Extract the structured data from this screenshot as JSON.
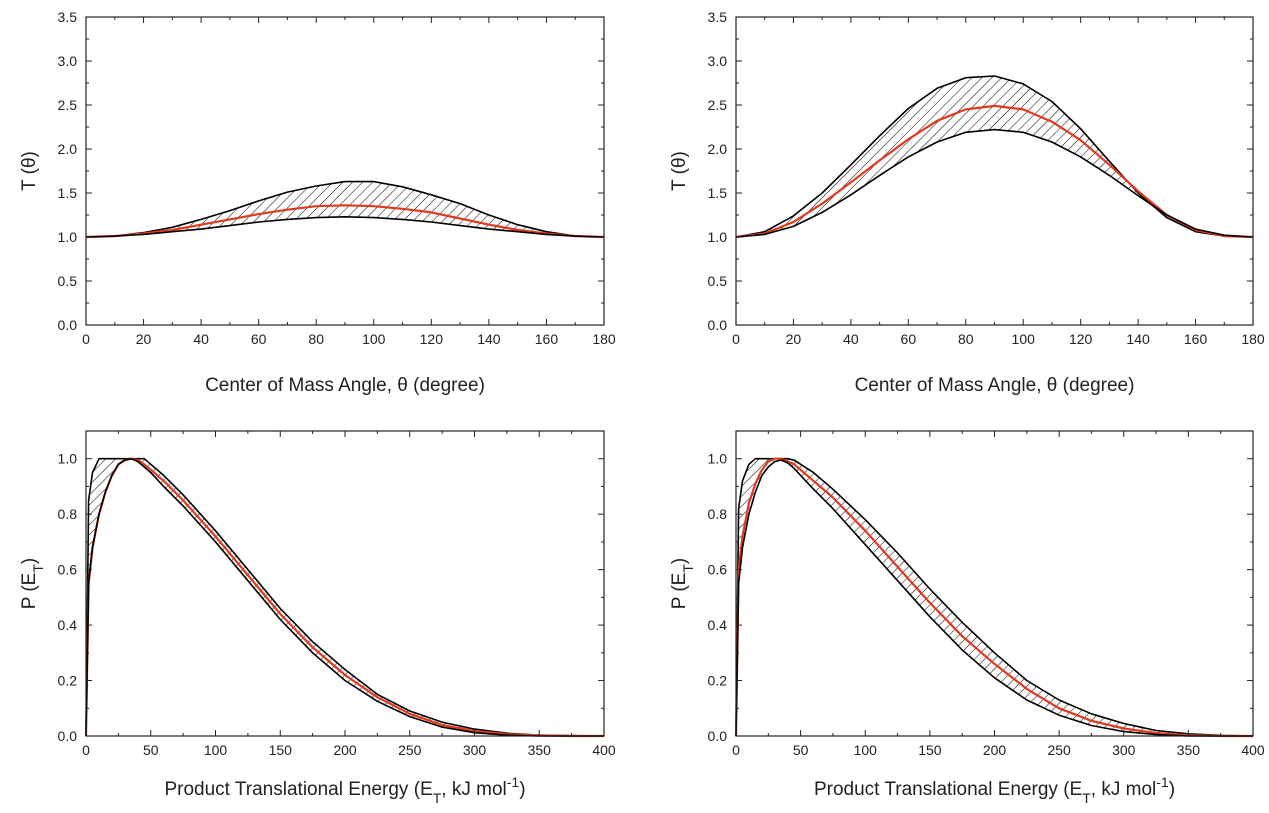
{
  "chart_data": [
    {
      "type": "area",
      "panel": "top-left",
      "xlabel": "Center of Mass Angle, θ (degree)",
      "ylabel": "T (θ)",
      "xlim": [
        0,
        180
      ],
      "ylim": [
        0,
        3.5
      ],
      "xticks": [
        "0",
        "20",
        "40",
        "60",
        "80",
        "100",
        "120",
        "140",
        "160",
        "180"
      ],
      "yticks": [
        "0.0",
        "0.5",
        "1.0",
        "1.5",
        "2.0",
        "2.5",
        "3.0",
        "3.5"
      ],
      "x": [
        0,
        10,
        20,
        30,
        40,
        50,
        60,
        70,
        80,
        90,
        100,
        110,
        120,
        130,
        140,
        150,
        160,
        170,
        180
      ],
      "series": [
        {
          "role": "upper_bound",
          "color": "#000000",
          "values": [
            1.0,
            1.01,
            1.05,
            1.11,
            1.2,
            1.3,
            1.41,
            1.51,
            1.58,
            1.63,
            1.63,
            1.57,
            1.48,
            1.38,
            1.25,
            1.14,
            1.06,
            1.01,
            1.0
          ]
        },
        {
          "role": "best_fit",
          "color": "#e03a1e",
          "values": [
            1.0,
            1.01,
            1.04,
            1.08,
            1.14,
            1.2,
            1.26,
            1.31,
            1.35,
            1.36,
            1.35,
            1.32,
            1.28,
            1.21,
            1.14,
            1.08,
            1.04,
            1.01,
            1.0
          ]
        },
        {
          "role": "lower_bound",
          "color": "#000000",
          "values": [
            1.0,
            1.01,
            1.03,
            1.06,
            1.09,
            1.13,
            1.17,
            1.2,
            1.22,
            1.23,
            1.22,
            1.2,
            1.17,
            1.13,
            1.09,
            1.06,
            1.03,
            1.01,
            1.0
          ]
        }
      ],
      "grid": false
    },
    {
      "type": "area",
      "panel": "top-right",
      "xlabel": "Center of Mass Angle, θ (degree)",
      "ylabel": "T (θ)",
      "xlim": [
        0,
        180
      ],
      "ylim": [
        0,
        3.5
      ],
      "xticks": [
        "0",
        "20",
        "40",
        "60",
        "80",
        "100",
        "120",
        "140",
        "160",
        "180"
      ],
      "yticks": [
        "0.0",
        "0.5",
        "1.0",
        "1.5",
        "2.0",
        "2.5",
        "3.0",
        "3.5"
      ],
      "x": [
        0,
        10,
        20,
        30,
        40,
        50,
        60,
        70,
        80,
        90,
        100,
        110,
        120,
        130,
        140,
        150,
        160,
        170,
        180
      ],
      "series": [
        {
          "role": "upper_bound",
          "color": "#000000",
          "values": [
            1.0,
            1.06,
            1.24,
            1.5,
            1.82,
            2.15,
            2.46,
            2.69,
            2.81,
            2.83,
            2.74,
            2.54,
            2.23,
            1.86,
            1.5,
            1.22,
            1.06,
            1.01,
            1.0
          ]
        },
        {
          "role": "best_fit",
          "color": "#e03a1e",
          "values": [
            1.0,
            1.04,
            1.17,
            1.38,
            1.62,
            1.87,
            2.11,
            2.32,
            2.45,
            2.49,
            2.45,
            2.31,
            2.1,
            1.82,
            1.52,
            1.25,
            1.08,
            1.01,
            1.0
          ]
        },
        {
          "role": "lower_bound",
          "color": "#000000",
          "values": [
            1.0,
            1.03,
            1.12,
            1.28,
            1.48,
            1.7,
            1.91,
            2.08,
            2.19,
            2.22,
            2.19,
            2.08,
            1.91,
            1.7,
            1.47,
            1.25,
            1.09,
            1.02,
            1.0
          ]
        }
      ],
      "grid": false
    },
    {
      "type": "area",
      "panel": "bottom-left",
      "xlabel": "Product Translational Energy (E",
      "xlabel_sub": "T",
      "xlabel_tail": ", kJ mol",
      "xlabel_sup": "-1",
      "xlabel_close": ")",
      "ylabel": "P (E",
      "ylabel_sub": "T",
      "ylabel_close": ")",
      "xlim": [
        0,
        400
      ],
      "ylim": [
        0,
        1.1
      ],
      "xticks": [
        "0",
        "50",
        "100",
        "150",
        "200",
        "250",
        "300",
        "350",
        "400"
      ],
      "yticks": [
        "0.0",
        "0.2",
        "0.4",
        "0.6",
        "0.8",
        "1.0"
      ],
      "x": [
        0,
        2,
        5,
        10,
        15,
        20,
        25,
        30,
        35,
        40,
        45,
        50,
        60,
        75,
        100,
        125,
        150,
        175,
        200,
        225,
        250,
        275,
        300,
        325,
        350,
        375,
        400
      ],
      "series": [
        {
          "role": "upper_bound",
          "color": "#000000",
          "values": [
            0,
            0.85,
            0.95,
            1.0,
            1.0,
            1.0,
            1.0,
            1.0,
            1.0,
            1.0,
            1.0,
            0.98,
            0.94,
            0.87,
            0.74,
            0.6,
            0.46,
            0.34,
            0.24,
            0.15,
            0.09,
            0.05,
            0.025,
            0.01,
            0.003,
            0.001,
            0
          ]
        },
        {
          "role": "best_fit",
          "color": "#e03a1e",
          "values": [
            0,
            0.55,
            0.68,
            0.8,
            0.88,
            0.94,
            0.98,
            0.995,
            1.0,
            0.995,
            0.98,
            0.96,
            0.92,
            0.85,
            0.72,
            0.58,
            0.44,
            0.32,
            0.22,
            0.14,
            0.08,
            0.04,
            0.018,
            0.007,
            0.002,
            0.0,
            0
          ]
        },
        {
          "role": "lower_bound",
          "color": "#000000",
          "values": [
            0,
            0.55,
            0.68,
            0.8,
            0.88,
            0.94,
            0.98,
            0.995,
            1.0,
            0.99,
            0.97,
            0.95,
            0.9,
            0.83,
            0.7,
            0.56,
            0.42,
            0.3,
            0.2,
            0.125,
            0.07,
            0.032,
            0.012,
            0.003,
            0.0,
            0.0,
            0
          ]
        }
      ],
      "grid": false
    },
    {
      "type": "area",
      "panel": "bottom-right",
      "xlabel": "Product Translational Energy (E",
      "xlabel_sub": "T",
      "xlabel_tail": ", kJ mol",
      "xlabel_sup": "-1",
      "xlabel_close": ")",
      "ylabel": "P (E",
      "ylabel_sub": "T",
      "ylabel_close": ")",
      "xlim": [
        0,
        400
      ],
      "ylim": [
        0,
        1.1
      ],
      "xticks": [
        "0",
        "50",
        "100",
        "150",
        "200",
        "250",
        "300",
        "350",
        "400"
      ],
      "yticks": [
        "0.0",
        "0.2",
        "0.4",
        "0.6",
        "0.8",
        "1.0"
      ],
      "x": [
        0,
        2,
        5,
        10,
        15,
        20,
        25,
        30,
        35,
        40,
        45,
        50,
        60,
        75,
        100,
        125,
        150,
        175,
        200,
        225,
        250,
        275,
        300,
        325,
        350,
        375,
        400
      ],
      "series": [
        {
          "role": "upper_bound",
          "color": "#000000",
          "values": [
            0,
            0.82,
            0.92,
            0.98,
            1.0,
            1.0,
            1.0,
            1.0,
            1.0,
            1.0,
            0.995,
            0.98,
            0.95,
            0.89,
            0.78,
            0.66,
            0.53,
            0.41,
            0.3,
            0.2,
            0.13,
            0.08,
            0.045,
            0.02,
            0.008,
            0.002,
            0
          ]
        },
        {
          "role": "best_fit",
          "color": "#e03a1e",
          "values": [
            0,
            0.6,
            0.72,
            0.84,
            0.91,
            0.96,
            0.99,
            1.0,
            1.0,
            0.99,
            0.98,
            0.96,
            0.92,
            0.86,
            0.74,
            0.61,
            0.48,
            0.36,
            0.26,
            0.17,
            0.1,
            0.055,
            0.027,
            0.011,
            0.003,
            0.0,
            0
          ]
        },
        {
          "role": "lower_bound",
          "color": "#000000",
          "values": [
            0,
            0.55,
            0.68,
            0.8,
            0.88,
            0.94,
            0.97,
            0.99,
            0.995,
            0.985,
            0.965,
            0.94,
            0.89,
            0.82,
            0.69,
            0.56,
            0.43,
            0.31,
            0.21,
            0.13,
            0.075,
            0.038,
            0.016,
            0.005,
            0.0,
            0.0,
            0
          ]
        }
      ],
      "grid": false
    }
  ]
}
